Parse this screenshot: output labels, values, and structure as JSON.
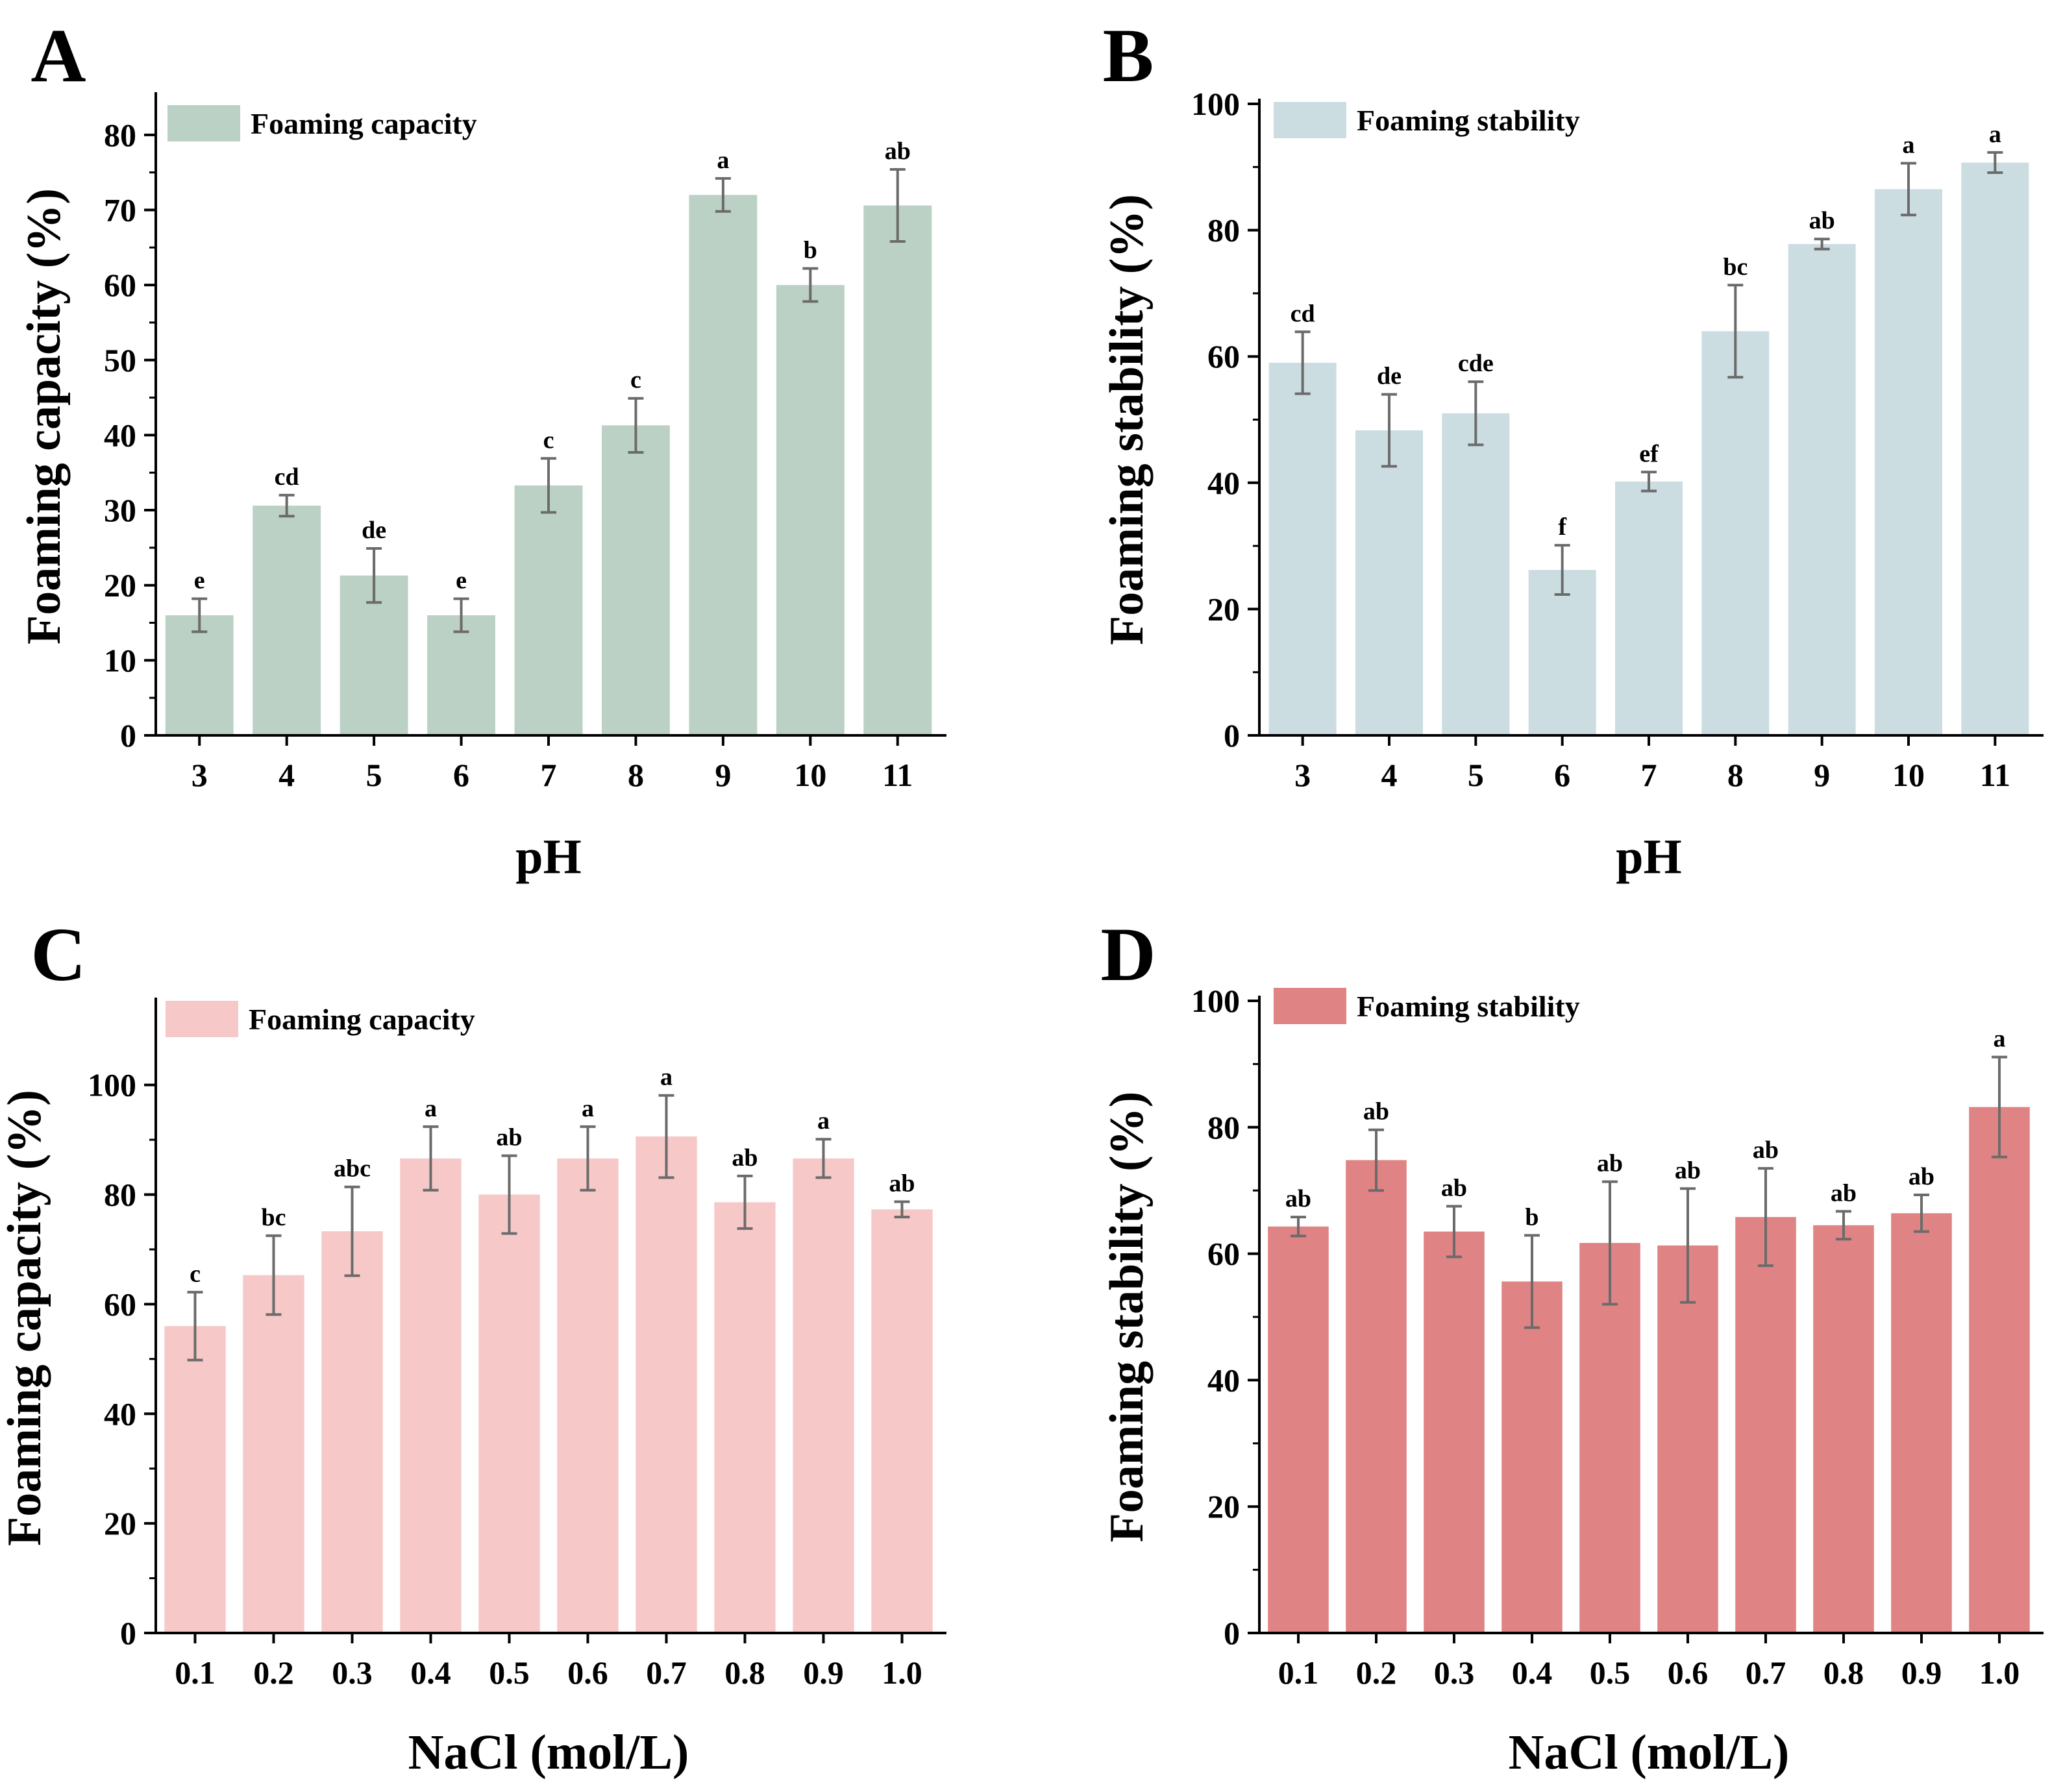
{
  "chart_data": [
    {
      "panel": "A",
      "type": "bar",
      "color": "#bbd1c5",
      "legend": "Foaming capacity",
      "xlabel": "pH",
      "ylabel": "Foaming capacity (%)",
      "ylim": [
        0,
        85
      ],
      "yticks": [
        0,
        10,
        20,
        30,
        40,
        50,
        60,
        70,
        80
      ],
      "categories": [
        "3",
        "4",
        "5",
        "6",
        "7",
        "8",
        "9",
        "10",
        "11"
      ],
      "values": [
        16,
        30.6,
        21.3,
        16,
        33.3,
        41.3,
        72,
        60,
        70.6
      ],
      "errors": [
        2.2,
        1.4,
        3.6,
        2.2,
        3.6,
        3.6,
        2.2,
        2.2,
        4.8
      ],
      "letters": [
        "e",
        "cd",
        "de",
        "e",
        "c",
        "c",
        "a",
        "b",
        "ab"
      ]
    },
    {
      "panel": "B",
      "type": "bar",
      "color": "#ccdde2",
      "legend": "Foaming stability",
      "xlabel": "pH",
      "ylabel": "Foaming stability (%)",
      "ylim": [
        0,
        100
      ],
      "yticks": [
        0,
        20,
        40,
        60,
        80,
        100
      ],
      "categories": [
        "3",
        "4",
        "5",
        "6",
        "7",
        "8",
        "9",
        "10",
        "11"
      ],
      "values": [
        59,
        48.3,
        51,
        26.2,
        40.2,
        64,
        77.8,
        86.5,
        90.7
      ],
      "errors": [
        4.9,
        5.7,
        5,
        3.9,
        1.5,
        7.3,
        0.8,
        4.1,
        1.6
      ],
      "letters": [
        "cd",
        "de",
        "cde",
        "f",
        "ef",
        "bc",
        "ab",
        "a",
        "a"
      ]
    },
    {
      "panel": "C",
      "type": "bar",
      "color": "#f7c8c8",
      "legend": "Foaming capacity",
      "xlabel": "NaCl (mol/L)",
      "ylabel": "Foaming capacity (%)",
      "ylim": [
        0,
        115
      ],
      "yticks": [
        0,
        20,
        40,
        60,
        80,
        100
      ],
      "categories": [
        "0.1",
        "0.2",
        "0.3",
        "0.4",
        "0.5",
        "0.6",
        "0.7",
        "0.8",
        "0.9",
        "1.0"
      ],
      "values": [
        56,
        65.3,
        73.3,
        86.6,
        80,
        86.6,
        90.6,
        78.6,
        86.6,
        77.3
      ],
      "errors": [
        6.2,
        7.2,
        8.1,
        5.8,
        7.1,
        5.8,
        7.5,
        4.8,
        3.5,
        1.4
      ],
      "letters": [
        "c",
        "bc",
        "abc",
        "a",
        "ab",
        "a",
        "a",
        "ab",
        "a",
        "ab"
      ]
    },
    {
      "panel": "D",
      "type": "bar",
      "color": "#e08385",
      "legend": "Foaming stability",
      "xlabel": "NaCl (mol/L)",
      "ylabel": "Foaming stability (%)",
      "ylim": [
        0,
        100
      ],
      "yticks": [
        0,
        20,
        40,
        60,
        80,
        100
      ],
      "categories": [
        "0.1",
        "0.2",
        "0.3",
        "0.4",
        "0.5",
        "0.6",
        "0.7",
        "0.8",
        "0.9",
        "1.0"
      ],
      "values": [
        64.3,
        74.8,
        63.5,
        55.6,
        61.7,
        61.3,
        65.8,
        64.5,
        66.4,
        83.2
      ],
      "errors": [
        1.5,
        4.8,
        4,
        7.3,
        9.7,
        9,
        7.7,
        2.2,
        2.9,
        7.9
      ],
      "letters": [
        "ab",
        "ab",
        "ab",
        "b",
        "ab",
        "ab",
        "ab",
        "ab",
        "ab",
        "a"
      ]
    }
  ]
}
